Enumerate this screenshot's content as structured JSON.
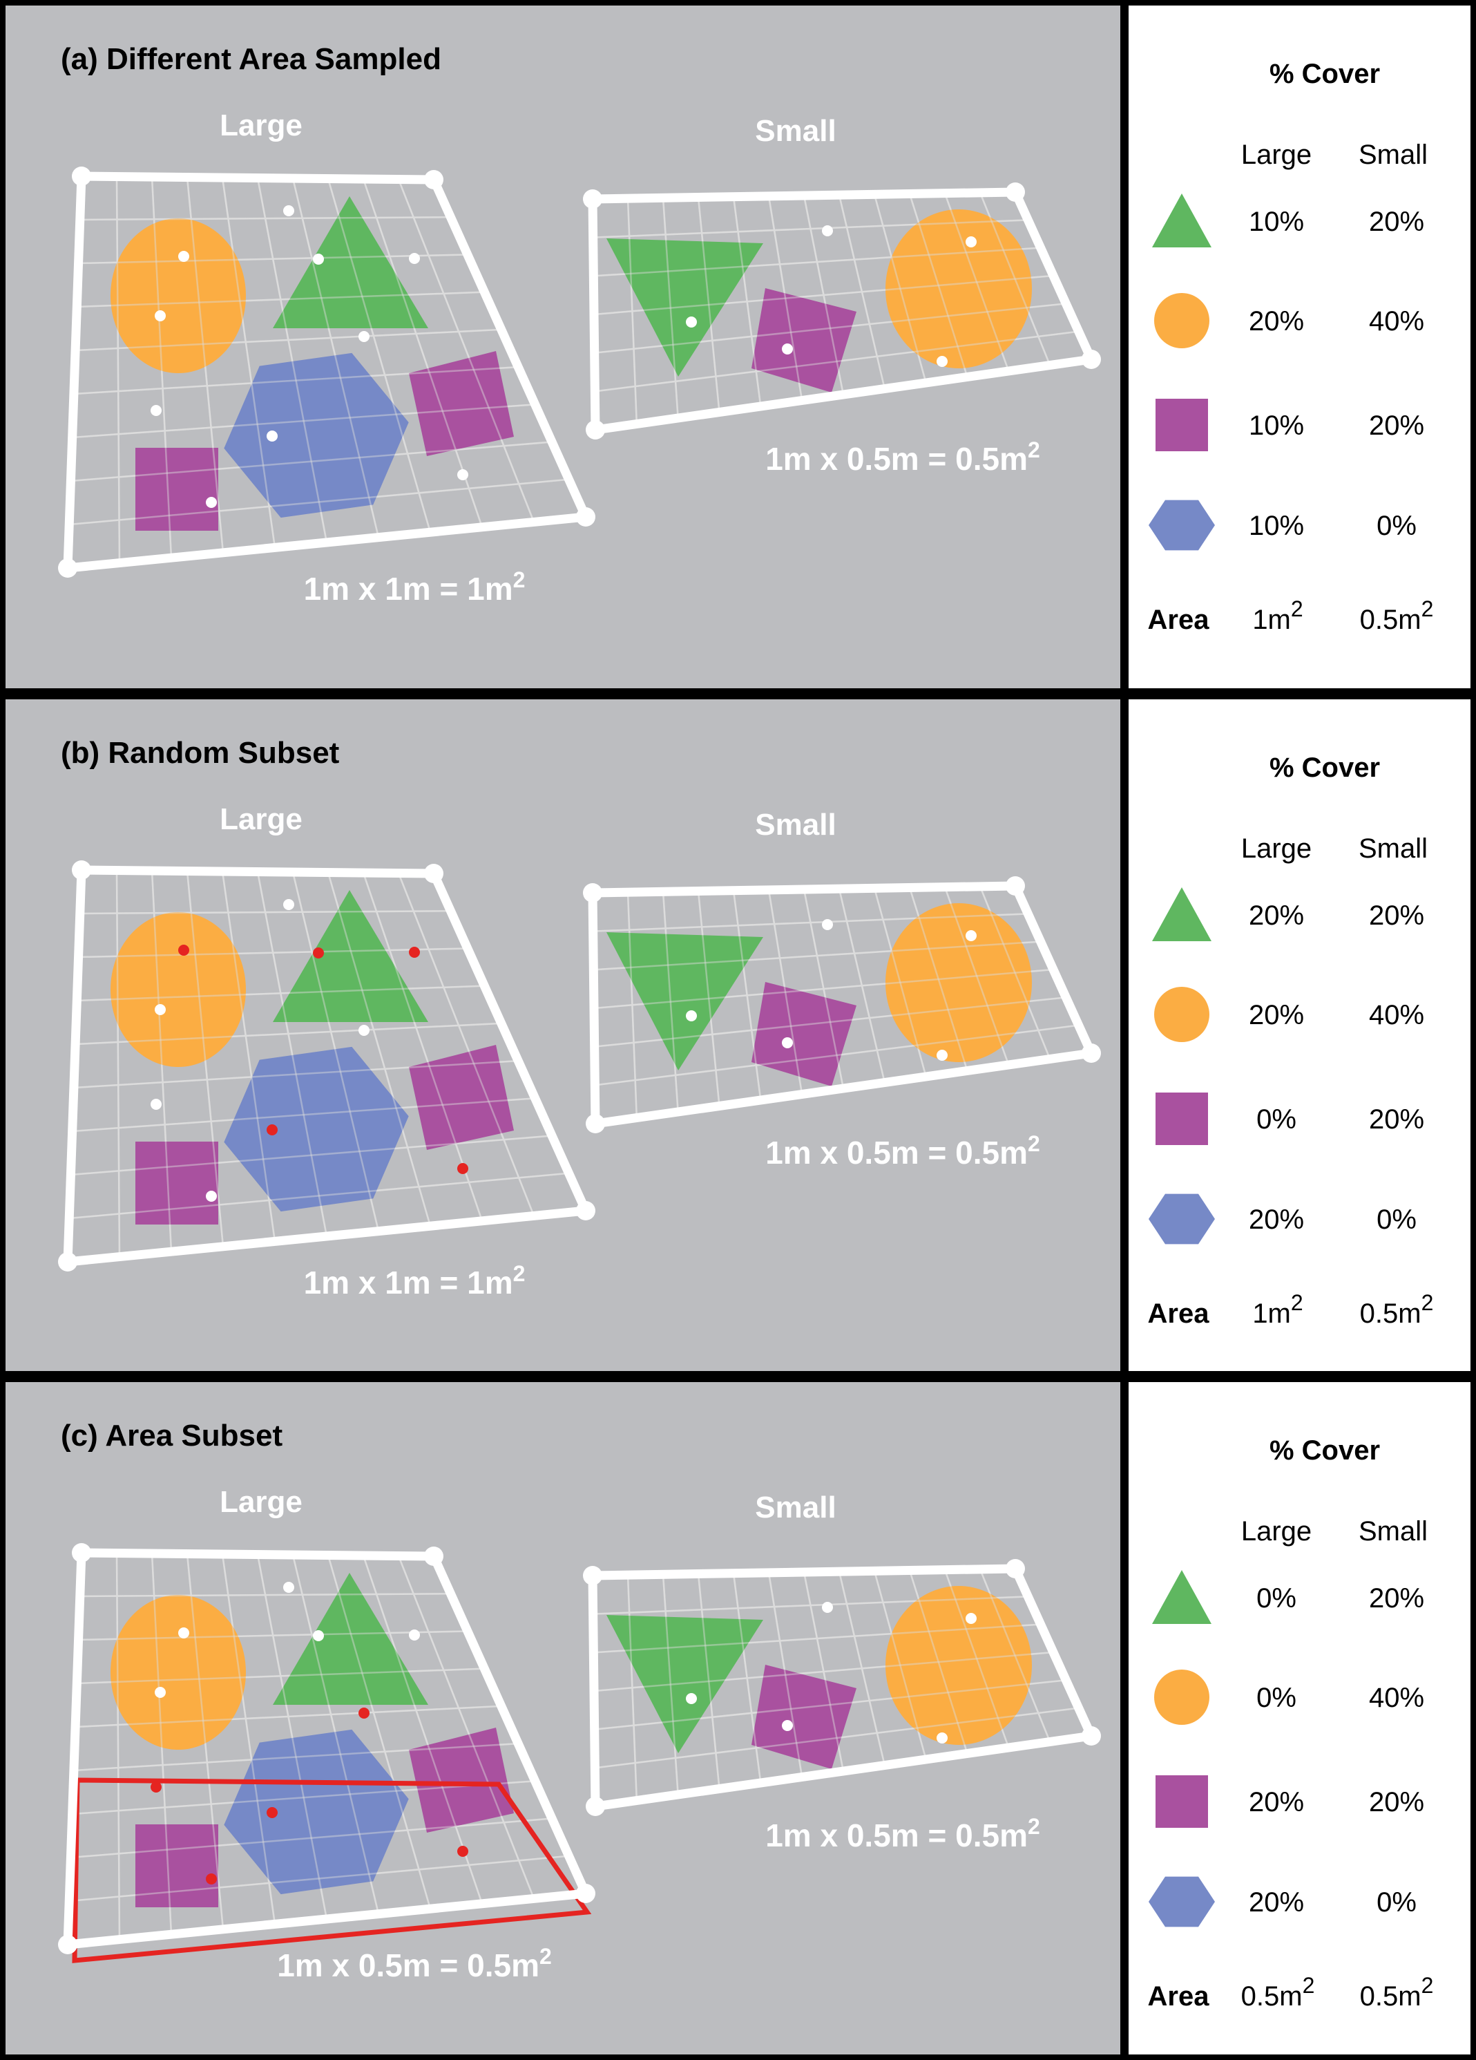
{
  "colors": {
    "background": "#bcbdc0",
    "triangle": "#5fb760",
    "circle": "#fbad43",
    "square": "#a9519f",
    "hexagon": "#7689c7",
    "point_white": "#ffffff",
    "point_red": "#e52421",
    "subset_outline": "#e52421"
  },
  "legend": {
    "title": "% Cover",
    "col_large": "Large",
    "col_small": "Small",
    "area_label": "Area",
    "shape_icons": [
      "triangle-icon",
      "circle-icon",
      "square-icon",
      "hexagon-icon"
    ]
  },
  "panels": [
    {
      "title": "(a) Different Area Sampled",
      "large_label": "Large",
      "small_label": "Small",
      "large_area": "1m x 1m = 1m",
      "large_area_sup": "2",
      "small_area": "1m x 0.5m = 0.5m",
      "small_area_sup": "2",
      "large_points": "white",
      "subset": false,
      "cover": {
        "triangle": [
          "10%",
          "20%"
        ],
        "circle": [
          "20%",
          "40%"
        ],
        "square": [
          "10%",
          "20%"
        ],
        "hexagon": [
          "10%",
          "0%"
        ]
      },
      "area_large": "1m",
      "area_large_sup": "2",
      "area_small": "0.5m",
      "area_small_sup": "2"
    },
    {
      "title": "(b) Random Subset",
      "large_label": "Large",
      "small_label": "Small",
      "large_area": "1m x 1m = 1m",
      "large_area_sup": "2",
      "small_area": "1m x 0.5m = 0.5m",
      "small_area_sup": "2",
      "large_points": "random",
      "subset": false,
      "cover": {
        "triangle": [
          "20%",
          "20%"
        ],
        "circle": [
          "20%",
          "40%"
        ],
        "square": [
          "0%",
          "20%"
        ],
        "hexagon": [
          "20%",
          "0%"
        ]
      },
      "area_large": "1m",
      "area_large_sup": "2",
      "area_small": "0.5m",
      "area_small_sup": "2"
    },
    {
      "title": "(c) Area Subset",
      "large_label": "Large",
      "small_label": "Small",
      "large_area": "1m x 0.5m = 0.5m",
      "large_area_sup": "2",
      "small_area": "1m x 0.5m = 0.5m",
      "small_area_sup": "2",
      "large_points": "area",
      "subset": true,
      "cover": {
        "triangle": [
          "0%",
          "20%"
        ],
        "circle": [
          "0%",
          "40%"
        ],
        "square": [
          "20%",
          "20%"
        ],
        "hexagon": [
          "20%",
          "0%"
        ]
      },
      "area_large": "0.5m",
      "area_large_sup": "2",
      "area_small": "0.5m",
      "area_small_sup": "2"
    }
  ]
}
